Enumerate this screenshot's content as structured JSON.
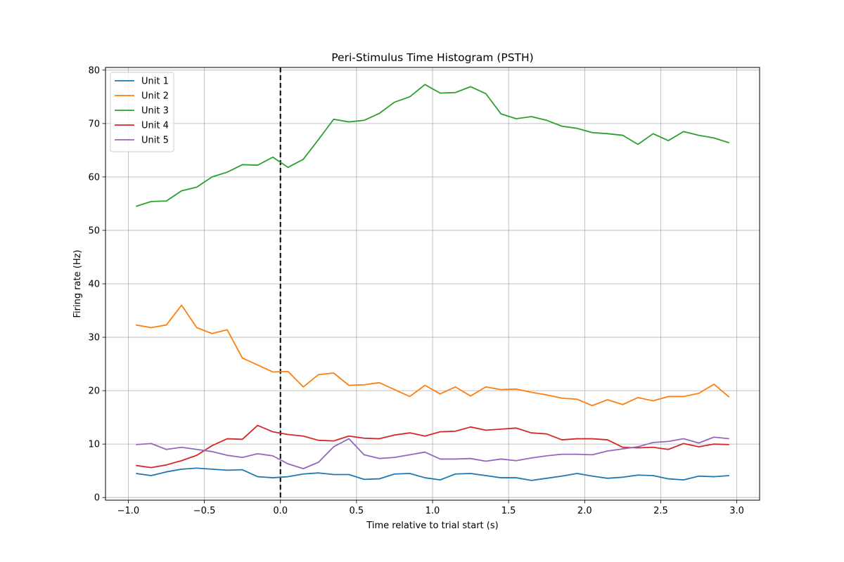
{
  "chart_data": {
    "type": "line",
    "title": "Peri-Stimulus Time Histogram (PSTH)",
    "xlabel": "Time relative to trial start (s)",
    "ylabel": "Firing rate (Hz)",
    "xlim": [
      -1.15,
      3.15
    ],
    "ylim": [
      -0.5,
      80.5
    ],
    "xticks": [
      -1.0,
      -0.5,
      0.0,
      0.5,
      1.0,
      1.5,
      2.0,
      2.5,
      3.0
    ],
    "xtick_labels": [
      "−1.0",
      "−0.5",
      "0.0",
      "0.5",
      "1.0",
      "1.5",
      "2.0",
      "2.5",
      "3.0"
    ],
    "yticks": [
      0,
      10,
      20,
      30,
      40,
      50,
      60,
      70,
      80
    ],
    "ytick_labels": [
      "0",
      "10",
      "20",
      "30",
      "40",
      "50",
      "60",
      "70",
      "80"
    ],
    "grid": true,
    "legend_position": "top-left",
    "stimulus_line": {
      "x": 0.0,
      "style": "dashed",
      "color": "#000000"
    },
    "x": [
      -0.95,
      -0.85,
      -0.75,
      -0.65,
      -0.55,
      -0.45,
      -0.35,
      -0.25,
      -0.15,
      -0.05,
      0.05,
      0.15,
      0.25,
      0.35,
      0.45,
      0.55,
      0.65,
      0.75,
      0.85,
      0.95,
      1.05,
      1.15,
      1.25,
      1.35,
      1.45,
      1.55,
      1.65,
      1.75,
      1.85,
      1.95,
      2.05,
      2.15,
      2.25,
      2.35,
      2.45,
      2.55,
      2.65,
      2.75,
      2.85,
      2.95
    ],
    "series": [
      {
        "name": "Unit 1",
        "color": "#1f77b4",
        "values": [
          4.5,
          4.1,
          4.8,
          5.3,
          5.5,
          5.3,
          5.1,
          5.2,
          3.9,
          3.7,
          3.9,
          4.4,
          4.6,
          4.3,
          4.3,
          3.4,
          3.5,
          4.4,
          4.5,
          3.7,
          3.3,
          4.4,
          4.5,
          4.1,
          3.7,
          3.7,
          3.2,
          3.6,
          4.0,
          4.5,
          4.0,
          3.6,
          3.8,
          4.2,
          4.1,
          3.5,
          3.3,
          4.0,
          3.9,
          4.1
        ]
      },
      {
        "name": "Unit 2",
        "color": "#ff7f0e",
        "values": [
          32.3,
          31.8,
          32.3,
          36.0,
          31.8,
          30.7,
          31.4,
          26.1,
          24.8,
          23.5,
          23.6,
          20.7,
          23.0,
          23.3,
          21.0,
          21.1,
          21.5,
          20.2,
          18.9,
          21.0,
          19.4,
          20.7,
          19.0,
          20.7,
          20.2,
          20.3,
          19.7,
          19.2,
          18.6,
          18.4,
          17.2,
          18.3,
          17.4,
          18.7,
          18.1,
          18.9,
          18.9,
          19.5,
          21.2,
          18.8
        ]
      },
      {
        "name": "Unit 3",
        "color": "#2ca02c",
        "values": [
          54.5,
          55.4,
          55.5,
          57.4,
          58.1,
          60.0,
          60.9,
          62.3,
          62.2,
          63.7,
          61.8,
          63.3,
          67.0,
          70.8,
          70.3,
          70.6,
          71.9,
          74.0,
          75.0,
          77.3,
          75.7,
          75.8,
          76.9,
          75.6,
          71.8,
          70.9,
          71.3,
          70.6,
          69.5,
          69.1,
          68.3,
          68.1,
          67.8,
          66.1,
          68.1,
          66.8,
          68.5,
          67.8,
          67.3,
          66.4
        ]
      },
      {
        "name": "Unit 4",
        "color": "#d62728",
        "values": [
          6.0,
          5.6,
          6.1,
          6.9,
          7.9,
          9.7,
          11.0,
          10.9,
          13.5,
          12.3,
          11.8,
          11.5,
          10.7,
          10.6,
          11.5,
          11.1,
          11.0,
          11.7,
          12.1,
          11.5,
          12.3,
          12.4,
          13.2,
          12.6,
          12.8,
          13.0,
          12.1,
          11.9,
          10.8,
          11.0,
          11.0,
          10.8,
          9.4,
          9.3,
          9.4,
          9.0,
          10.1,
          9.5,
          10.0,
          9.9
        ]
      },
      {
        "name": "Unit 5",
        "color": "#9467bd",
        "values": [
          9.9,
          10.1,
          9.0,
          9.4,
          9.0,
          8.6,
          7.9,
          7.5,
          8.2,
          7.8,
          6.3,
          5.4,
          6.6,
          9.5,
          11.0,
          8.0,
          7.3,
          7.5,
          8.0,
          8.5,
          7.2,
          7.2,
          7.3,
          6.8,
          7.2,
          6.9,
          7.4,
          7.8,
          8.1,
          8.1,
          8.0,
          8.7,
          9.1,
          9.5,
          10.3,
          10.5,
          11.0,
          10.2,
          11.3,
          11.0
        ]
      }
    ]
  }
}
